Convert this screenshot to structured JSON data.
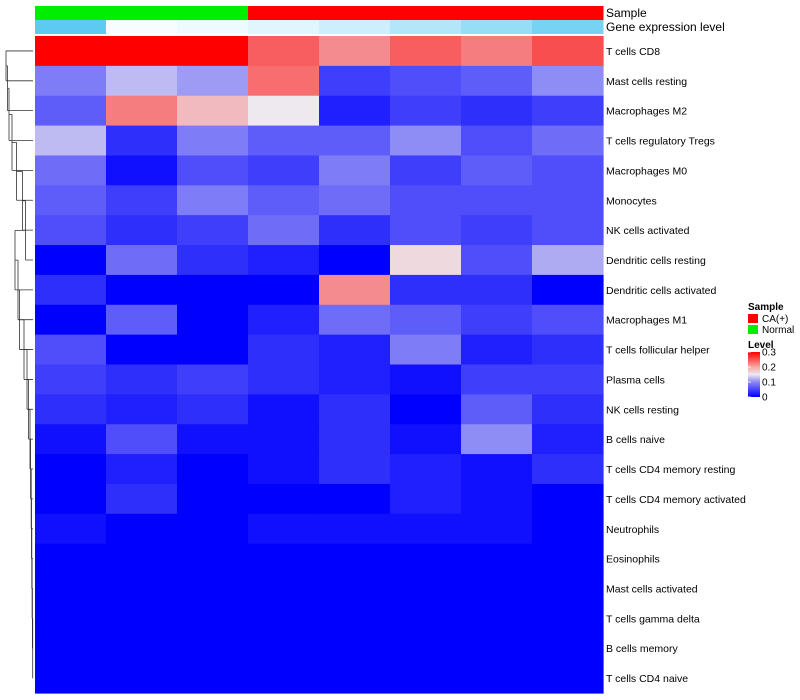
{
  "chart_data": {
    "type": "heatmap",
    "annotation_labels": {
      "sample": "Sample",
      "expression": "Gene expression level"
    },
    "columns": [
      {
        "sample": "Normal",
        "expression": 0.96
      },
      {
        "sample": "Normal",
        "expression": 0.05
      },
      {
        "sample": "Normal",
        "expression": 0.1
      },
      {
        "sample": "CA(+)",
        "expression": 0.18
      },
      {
        "sample": "CA(+)",
        "expression": 0.3
      },
      {
        "sample": "CA(+)",
        "expression": 0.45
      },
      {
        "sample": "CA(+)",
        "expression": 0.62
      },
      {
        "sample": "CA(+)",
        "expression": 0.8
      }
    ],
    "rows": [
      "T cells CD8",
      "Mast cells resting",
      "Macrophages M2",
      "T cells regulatory  Tregs",
      "Macrophages M0",
      "Monocytes",
      "NK cells activated",
      "Dendritic cells resting",
      "Dendritic cells activated",
      "Macrophages M1",
      "T cells follicular helper",
      "Plasma cells",
      "NK cells resting",
      "B cells naive",
      "T cells CD4 memory resting",
      "T cells CD4 memory activated",
      "Neutrophils",
      "Eosinophils",
      "Mast cells activated",
      "T cells gamma delta",
      "B cells memory",
      "T cells CD4 naive"
    ],
    "values": [
      [
        0.3,
        0.3,
        0.3,
        0.24,
        0.21,
        0.24,
        0.22,
        0.25
      ],
      [
        0.08,
        0.12,
        0.1,
        0.23,
        0.04,
        0.05,
        0.06,
        0.09
      ],
      [
        0.06,
        0.22,
        0.18,
        0.15,
        0.02,
        0.04,
        0.03,
        0.04
      ],
      [
        0.12,
        0.03,
        0.08,
        0.06,
        0.06,
        0.09,
        0.05,
        0.07
      ],
      [
        0.07,
        0.01,
        0.05,
        0.04,
        0.08,
        0.04,
        0.06,
        0.05
      ],
      [
        0.06,
        0.04,
        0.08,
        0.06,
        0.07,
        0.05,
        0.05,
        0.05
      ],
      [
        0.05,
        0.03,
        0.04,
        0.07,
        0.03,
        0.05,
        0.04,
        0.05
      ],
      [
        0.0,
        0.07,
        0.03,
        0.02,
        0.0,
        0.16,
        0.05,
        0.11
      ],
      [
        0.03,
        0.0,
        0.0,
        0.0,
        0.21,
        0.03,
        0.03,
        0.0
      ],
      [
        0.0,
        0.06,
        0.0,
        0.02,
        0.07,
        0.06,
        0.04,
        0.05
      ],
      [
        0.05,
        0.0,
        0.0,
        0.03,
        0.02,
        0.08,
        0.02,
        0.03
      ],
      [
        0.04,
        0.03,
        0.04,
        0.03,
        0.02,
        0.01,
        0.04,
        0.04
      ],
      [
        0.03,
        0.02,
        0.03,
        0.01,
        0.03,
        0.0,
        0.06,
        0.03
      ],
      [
        0.01,
        0.05,
        0.01,
        0.01,
        0.03,
        0.01,
        0.09,
        0.02
      ],
      [
        0.0,
        0.02,
        0.0,
        0.01,
        0.03,
        0.02,
        0.01,
        0.03
      ],
      [
        0.0,
        0.03,
        0.0,
        0.0,
        0.0,
        0.02,
        0.01,
        0.0
      ],
      [
        0.01,
        0.0,
        0.0,
        0.01,
        0.01,
        0.01,
        0.01,
        0.0
      ],
      [
        0.0,
        0.0,
        0.0,
        0.0,
        0.0,
        0.0,
        0.0,
        0.0
      ],
      [
        0.0,
        0.0,
        0.0,
        0.0,
        0.0,
        0.0,
        0.0,
        0.0
      ],
      [
        0.0,
        0.0,
        0.0,
        0.0,
        0.0,
        0.0,
        0.0,
        0.0
      ],
      [
        0.0,
        0.0,
        0.0,
        0.0,
        0.0,
        0.0,
        0.0,
        0.0
      ],
      [
        0.0,
        0.0,
        0.0,
        0.0,
        0.0,
        0.0,
        0.0,
        0.0
      ]
    ],
    "value_range": [
      0,
      0.3
    ],
    "colors": {
      "low": "#0000ff",
      "mid": "#ede9ef",
      "high": "#ff0000"
    },
    "sample_colors": {
      "CA(+)": "#ff0000",
      "Normal": "#00ee00"
    },
    "expression_colors": {
      "low": "#ffffff",
      "high": "#56c8f0"
    },
    "legend": {
      "sample_title": "Sample",
      "sample_items": [
        "CA(+)",
        "Normal"
      ],
      "level_title": "Level",
      "level_ticks": [
        "0.3",
        "0.2",
        "0.1",
        "0"
      ],
      "level_tick_values": [
        0.3,
        0.2,
        0.1,
        0
      ]
    },
    "dendrogram": [
      [
        "L",
        0.0,
        0.0,
        1.0,
        0.9
      ],
      [
        "L",
        1.0,
        0.0,
        2.0,
        0.85
      ],
      [
        "L",
        2.0,
        0.0,
        3.0,
        0.8
      ],
      [
        "L",
        3.0,
        0.0,
        4.0,
        0.7
      ],
      [
        "L",
        4.0,
        0.0,
        5.0,
        0.55
      ],
      [
        "L",
        5.0,
        0.0,
        6.0,
        0.35
      ],
      [
        "L",
        6.0,
        0.0,
        7.0,
        0.25
      ],
      [
        "L",
        7.0,
        0.0,
        8.0,
        0.6
      ],
      [
        "L",
        8.0,
        0.0,
        9.0,
        0.5
      ],
      [
        "L",
        9.0,
        0.0,
        10.0,
        0.45
      ],
      [
        "L",
        10.0,
        0.0,
        11.0,
        0.3
      ],
      [
        "L",
        11.0,
        0.0,
        12.0,
        0.2
      ],
      [
        "L",
        12.0,
        0.0,
        13.0,
        0.15
      ],
      [
        "L",
        13.0,
        0.0,
        14.0,
        0.1
      ],
      [
        "L",
        14.0,
        0.0,
        15.0,
        0.08
      ],
      [
        "L",
        15.0,
        0.0,
        16.0,
        0.06
      ],
      [
        "L",
        16.0,
        0.0,
        17.0,
        0.05
      ],
      [
        "L",
        17.0,
        0.0,
        18.0,
        0.04
      ],
      [
        "L",
        18.0,
        0.0,
        19.0,
        0.03
      ],
      [
        "L",
        19.0,
        0.0,
        20.0,
        0.02
      ],
      [
        "L",
        20.0,
        0.0,
        21.0,
        0.01
      ]
    ]
  }
}
